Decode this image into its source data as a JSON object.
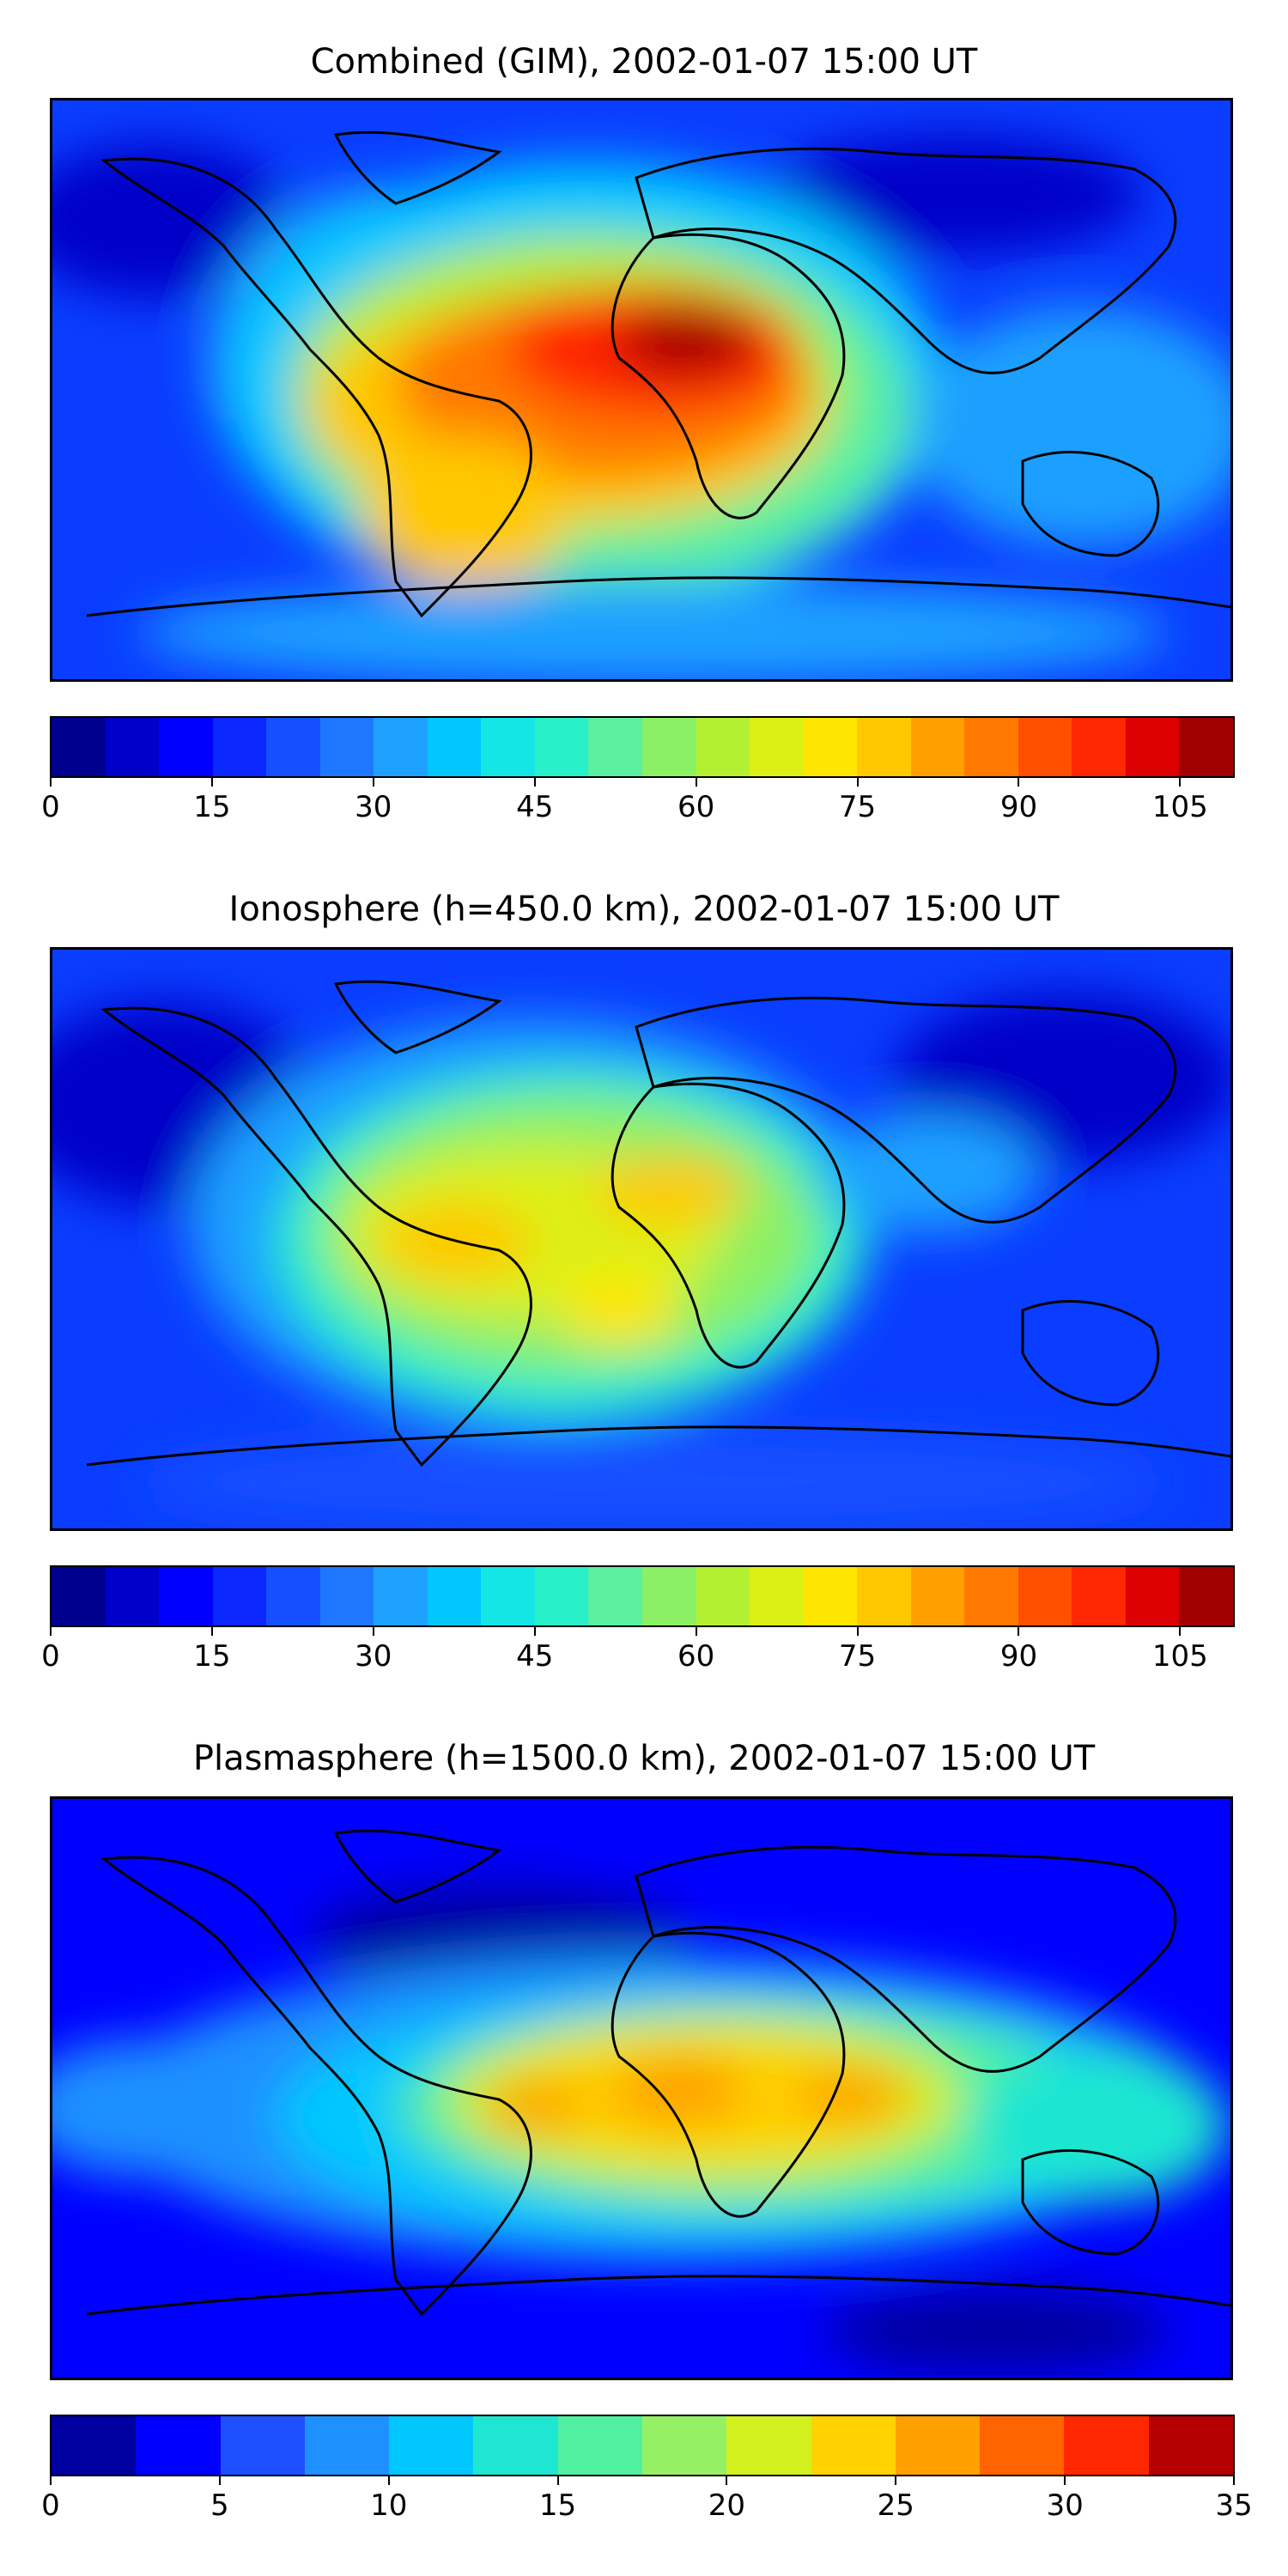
{
  "panels": [
    {
      "title": "Combined (GIM), 2002-01-07 15:00 UT",
      "colorbar": {
        "min": 0,
        "max": 110,
        "step": 5,
        "ticks": [
          "0",
          "15",
          "30",
          "45",
          "60",
          "75",
          "90",
          "105"
        ],
        "tick_values": [
          0,
          15,
          30,
          45,
          60,
          75,
          90,
          105
        ]
      }
    },
    {
      "title": "Ionosphere  (h=450.0 km), 2002-01-07 15:00 UT",
      "colorbar": {
        "min": 0,
        "max": 110,
        "step": 5,
        "ticks": [
          "0",
          "15",
          "30",
          "45",
          "60",
          "75",
          "90",
          "105"
        ],
        "tick_values": [
          0,
          15,
          30,
          45,
          60,
          75,
          90,
          105
        ]
      }
    },
    {
      "title": "Plasmasphere (h=1500.0 km), 2002-01-07 15:00 UT",
      "colorbar": {
        "min": 0,
        "max": 35,
        "step": 2.5,
        "ticks": [
          "0",
          "5",
          "10",
          "15",
          "20",
          "25",
          "30",
          "35"
        ],
        "tick_values": [
          0,
          5,
          10,
          15,
          20,
          25,
          30,
          35
        ]
      }
    }
  ],
  "palette": {
    "ionosphere_22": [
      "#00008f",
      "#0000c8",
      "#0000ff",
      "#0a28ff",
      "#1450ff",
      "#1e78ff",
      "#1ea0ff",
      "#00c8ff",
      "#14e6e6",
      "#28f0c8",
      "#5af0a0",
      "#8cf064",
      "#b4f032",
      "#dcf014",
      "#ffe600",
      "#ffc800",
      "#ffa000",
      "#ff7800",
      "#ff5000",
      "#ff2800",
      "#dc0000",
      "#a00000"
    ],
    "plasmasphere_14": [
      "#0000a0",
      "#0000ff",
      "#1e50ff",
      "#1e90ff",
      "#00c8ff",
      "#1ee6d2",
      "#50f0a0",
      "#96f064",
      "#d2f01e",
      "#ffd200",
      "#ffa000",
      "#ff6400",
      "#ff2800",
      "#b40000"
    ]
  }
}
